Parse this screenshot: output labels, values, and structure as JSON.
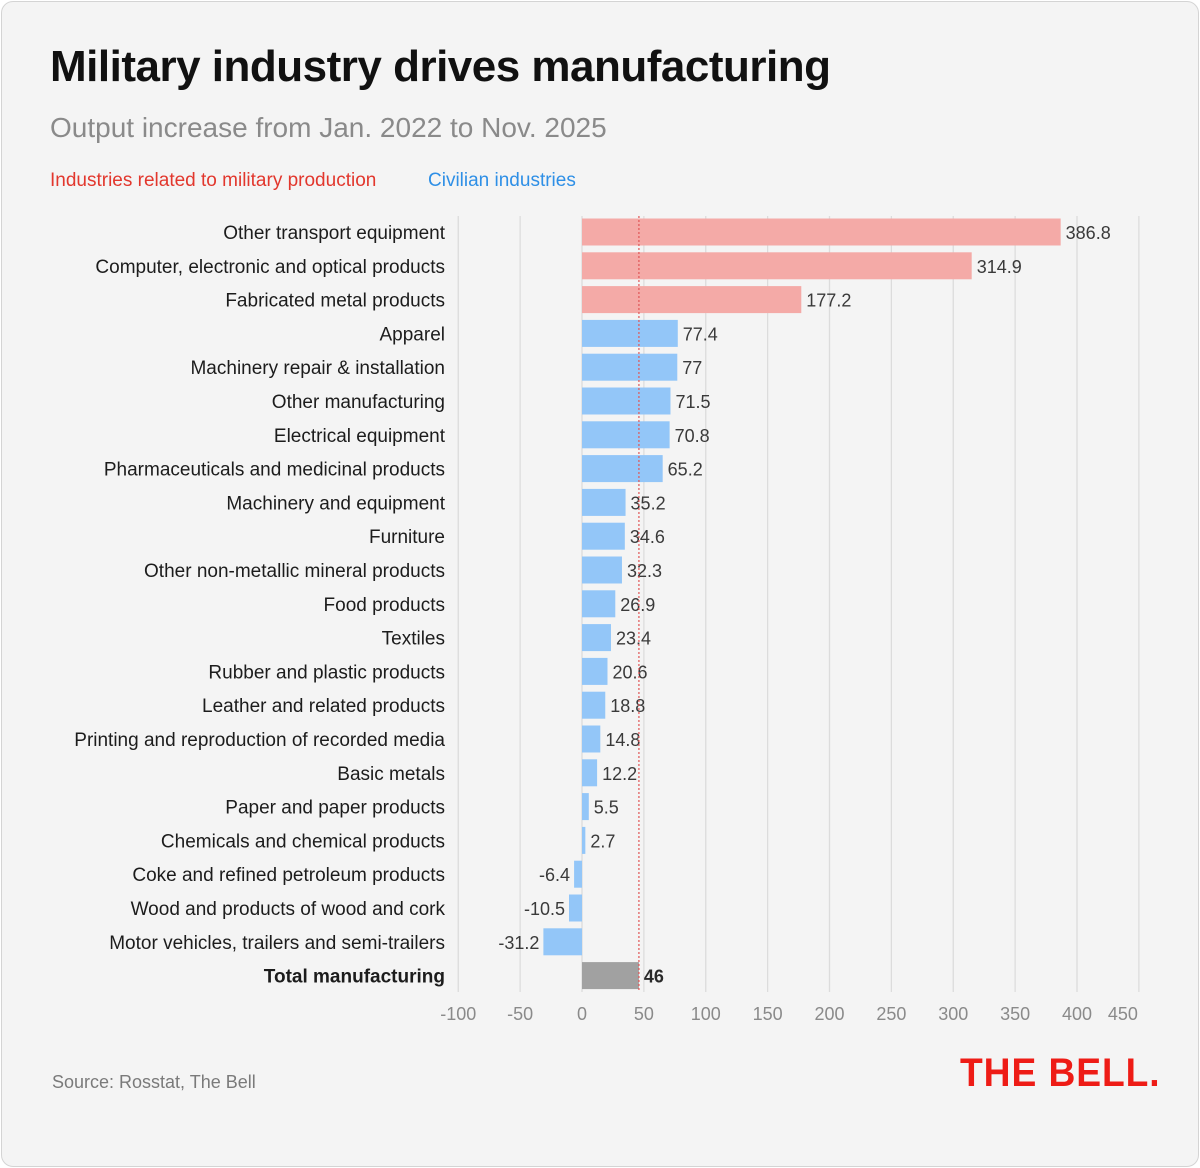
{
  "title": "Military industry drives manufacturing",
  "subtitle": "Output increase from Jan. 2022 to Nov. 2025",
  "legend": {
    "military": "Industries related to military production",
    "civilian": "Civilian industries"
  },
  "colors": {
    "military_bar": "#f4aaa7",
    "civilian_bar": "#93c6f8",
    "total_bar": "#a1a1a1",
    "military_text": "#e2372d",
    "civilian_text": "#2e8fe6",
    "brand": "#ee1c16",
    "reference_line": "#e05555"
  },
  "chart_data": {
    "type": "bar",
    "orientation": "horizontal",
    "title": "Military industry drives manufacturing",
    "subtitle": "Output increase from Jan. 2022 to Nov. 2025",
    "xlim": [
      -100,
      450
    ],
    "ticks": [
      -100,
      -50,
      0,
      50,
      100,
      150,
      200,
      250,
      300,
      350,
      400,
      450
    ],
    "grid": true,
    "reference_value": 46,
    "categories": [
      "Other transport equipment",
      "Computer, electronic and optical products",
      "Fabricated metal products",
      "Apparel",
      "Machinery repair & installation",
      "Other manufacturing",
      "Electrical equipment",
      "Pharmaceuticals and medicinal products",
      "Machinery and equipment",
      "Furniture",
      "Other non-metallic mineral products",
      "Food products",
      "Textiles",
      "Rubber and plastic products",
      "Leather and related products",
      "Printing and reproduction of recorded media",
      "Basic metals",
      "Paper and paper products",
      "Chemicals and chemical products",
      "Coke and refined petroleum products",
      "Wood and products of wood and cork",
      "Motor vehicles, trailers and semi-trailers",
      "Total manufacturing"
    ],
    "values": [
      386.8,
      314.9,
      177.2,
      77.4,
      77,
      71.5,
      70.8,
      65.2,
      35.2,
      34.6,
      32.3,
      26.9,
      23.4,
      20.6,
      18.8,
      14.8,
      12.2,
      5.5,
      2.7,
      -6.4,
      -10.5,
      -31.2,
      46
    ],
    "groups": [
      "military",
      "military",
      "military",
      "civilian",
      "civilian",
      "civilian",
      "civilian",
      "civilian",
      "civilian",
      "civilian",
      "civilian",
      "civilian",
      "civilian",
      "civilian",
      "civilian",
      "civilian",
      "civilian",
      "civilian",
      "civilian",
      "civilian",
      "civilian",
      "civilian",
      "total"
    ]
  },
  "source": "Source: Rosstat, The Bell",
  "logo": "THE BELL."
}
